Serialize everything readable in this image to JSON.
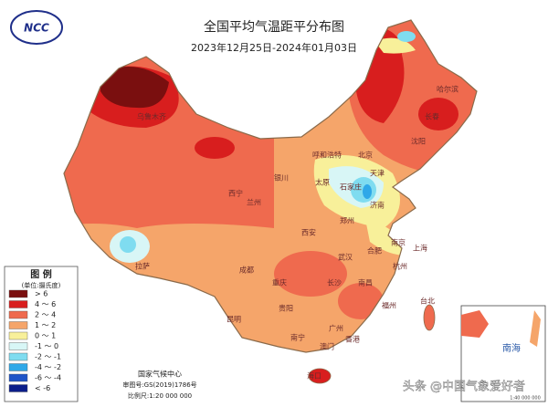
{
  "header": {
    "title": "全国平均气温距平分布图",
    "date": "2023年12月25日-2024年01月03日",
    "logo": "NCC"
  },
  "legend": {
    "title": "图 例",
    "unit": "(单位:摄氏度)",
    "items": [
      {
        "label": "> 6",
        "color": "#7a0f0f"
      },
      {
        "label": "4 ～ 6",
        "color": "#d81e1e"
      },
      {
        "label": "2 ～ 4",
        "color": "#ef6a4e"
      },
      {
        "label": "1 ～ 2",
        "color": "#f5a56a"
      },
      {
        "label": "0 ～ 1",
        "color": "#f8f09a"
      },
      {
        "label": "-1 ～ 0",
        "color": "#d8f6f6"
      },
      {
        "label": "-2 ～ -1",
        "color": "#7fdcf0"
      },
      {
        "label": "-4 ～ -2",
        "color": "#2fa8e8"
      },
      {
        "label": "-6 ～ -4",
        "color": "#1f55c8"
      },
      {
        "label": "< -6",
        "color": "#0b1e8a"
      }
    ]
  },
  "cities": [
    "乌鲁木齐",
    "哈尔滨",
    "长春",
    "沈阳",
    "呼和浩特",
    "北京",
    "天津",
    "石家庄",
    "太原",
    "济南",
    "郑州",
    "西安",
    "兰州",
    "西宁",
    "银川",
    "拉萨",
    "成都",
    "重庆",
    "武汉",
    "南京",
    "上海",
    "杭州",
    "合肥",
    "长沙",
    "南昌",
    "贵阳",
    "昆明",
    "南宁",
    "福州",
    "台北",
    "广州",
    "香港",
    "澳门",
    "海口"
  ],
  "footer": {
    "org": "国家气候中心",
    "approval": "审图号:GS(2019)1786号",
    "scale": "比例尺:1:20 000 000"
  },
  "inset": {
    "label": "南海",
    "scale": "1:40 000 000"
  },
  "watermark": "头条 @中国气象爱好者"
}
